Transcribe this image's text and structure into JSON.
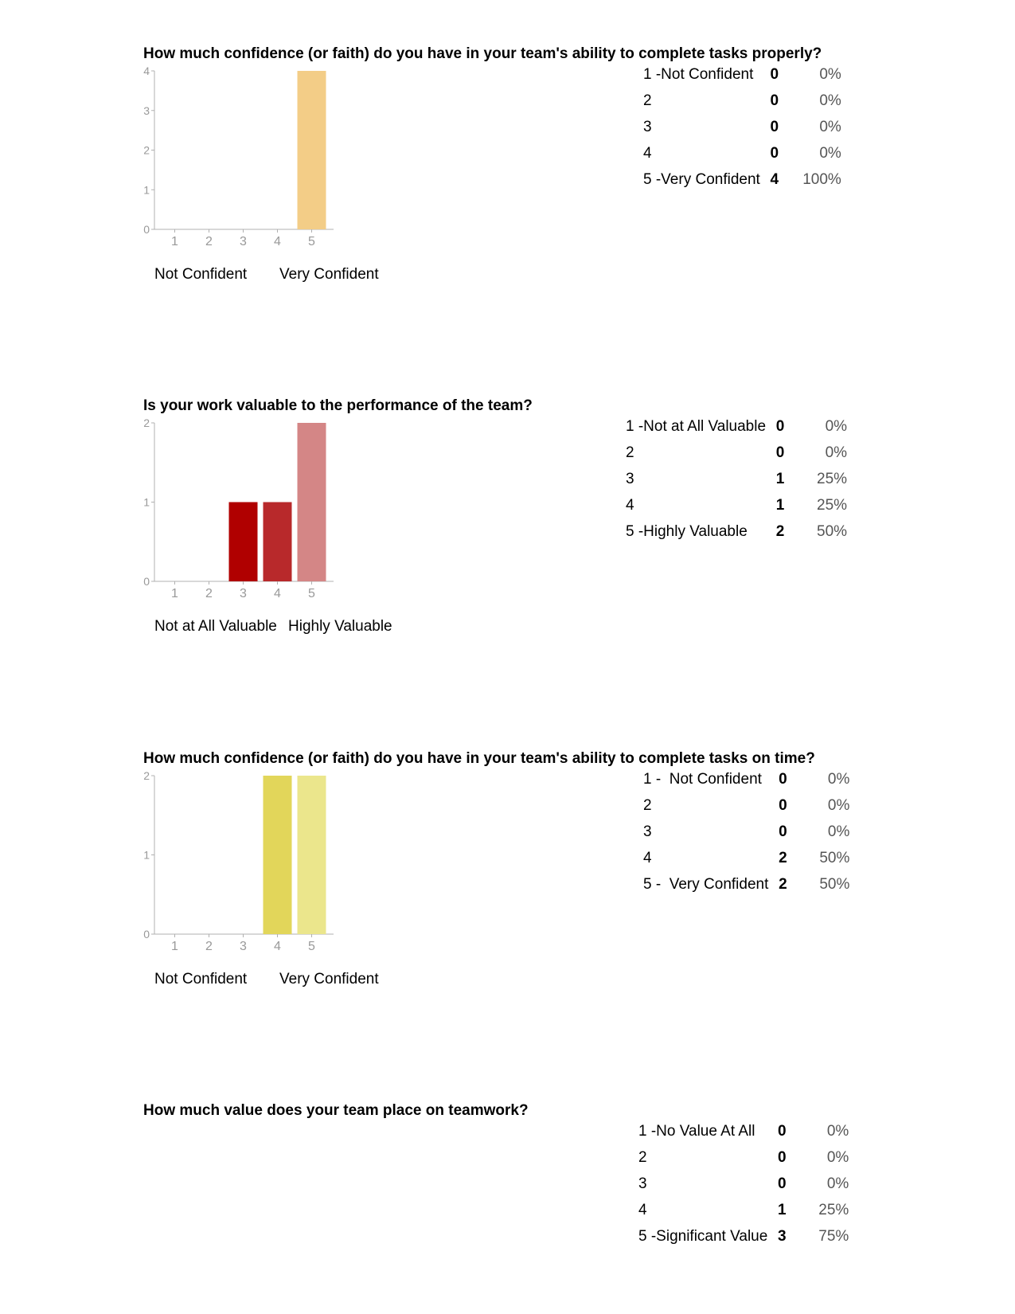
{
  "questions": [
    {
      "title": "How much confidence (or faith) do you have in your team's ability to complete tasks properly?",
      "scale_low": "Not Confident",
      "scale_high": "Very Confident",
      "rows": [
        {
          "label": "1 -Not Confident",
          "count": "0",
          "percent": "0%"
        },
        {
          "label": "2",
          "count": "0",
          "percent": "0%"
        },
        {
          "label": "3",
          "count": "0",
          "percent": "0%"
        },
        {
          "label": "4",
          "count": "0",
          "percent": "0%"
        },
        {
          "label": "5 -Very Confident",
          "count": "4",
          "percent": "100%"
        }
      ]
    },
    {
      "title": "Is your work valuable to the performance of the team?",
      "scale_low": "Not at All Valuable",
      "scale_high": "Highly Valuable",
      "rows": [
        {
          "label": "1 -Not at All Valuable",
          "count": "0",
          "percent": "0%"
        },
        {
          "label": "2",
          "count": "0",
          "percent": "0%"
        },
        {
          "label": "3",
          "count": "1",
          "percent": "25%"
        },
        {
          "label": "4",
          "count": "1",
          "percent": "25%"
        },
        {
          "label": "5 -Highly Valuable",
          "count": "2",
          "percent": "50%"
        }
      ]
    },
    {
      "title": "How much confidence (or faith) do you have in your team's ability to complete tasks on time?",
      "scale_low": "Not Confident",
      "scale_high": "Very Confident",
      "rows": [
        {
          "label": "1 -  Not Confident",
          "count": "0",
          "percent": "0%"
        },
        {
          "label": "2",
          "count": "0",
          "percent": "0%"
        },
        {
          "label": "3",
          "count": "0",
          "percent": "0%"
        },
        {
          "label": "4",
          "count": "2",
          "percent": "50%"
        },
        {
          "label": "5 -  Very Confident",
          "count": "2",
          "percent": "50%"
        }
      ]
    },
    {
      "title": "How much value does your team place on teamwork?",
      "rows": [
        {
          "label": "1 -No Value At All",
          "count": "0",
          "percent": "0%"
        },
        {
          "label": "2",
          "count": "0",
          "percent": "0%"
        },
        {
          "label": "3",
          "count": "0",
          "percent": "0%"
        },
        {
          "label": "4",
          "count": "1",
          "percent": "25%"
        },
        {
          "label": "5 -Significant Value",
          "count": "3",
          "percent": "75%"
        }
      ]
    }
  ],
  "chart_data": [
    {
      "type": "bar",
      "categories": [
        "1",
        "2",
        "3",
        "4",
        "5"
      ],
      "values": [
        0,
        0,
        0,
        0,
        4
      ],
      "ylim": [
        0,
        4
      ],
      "yticks": [
        0,
        1,
        2,
        3,
        4
      ],
      "grid": false,
      "colors": [
        "#f3cd87",
        "#f3cd87",
        "#f3cd87",
        "#f3cd87",
        "#f3cd87"
      ]
    },
    {
      "type": "bar",
      "categories": [
        "1",
        "2",
        "3",
        "4",
        "5"
      ],
      "values": [
        0,
        0,
        1,
        1,
        2
      ],
      "ylim": [
        0,
        2
      ],
      "yticks": [
        0,
        1,
        2
      ],
      "grid": false,
      "colors": [
        "#b00000",
        "#b00000",
        "#b00000",
        "#b8292b",
        "#d48686"
      ]
    },
    {
      "type": "bar",
      "categories": [
        "1",
        "2",
        "3",
        "4",
        "5"
      ],
      "values": [
        0,
        0,
        0,
        2,
        2
      ],
      "ylim": [
        0,
        2
      ],
      "yticks": [
        0,
        1,
        2
      ],
      "grid": false,
      "colors": [
        "#e2d65a",
        "#e2d65a",
        "#e2d65a",
        "#e2d65a",
        "#ebe68c"
      ]
    }
  ]
}
